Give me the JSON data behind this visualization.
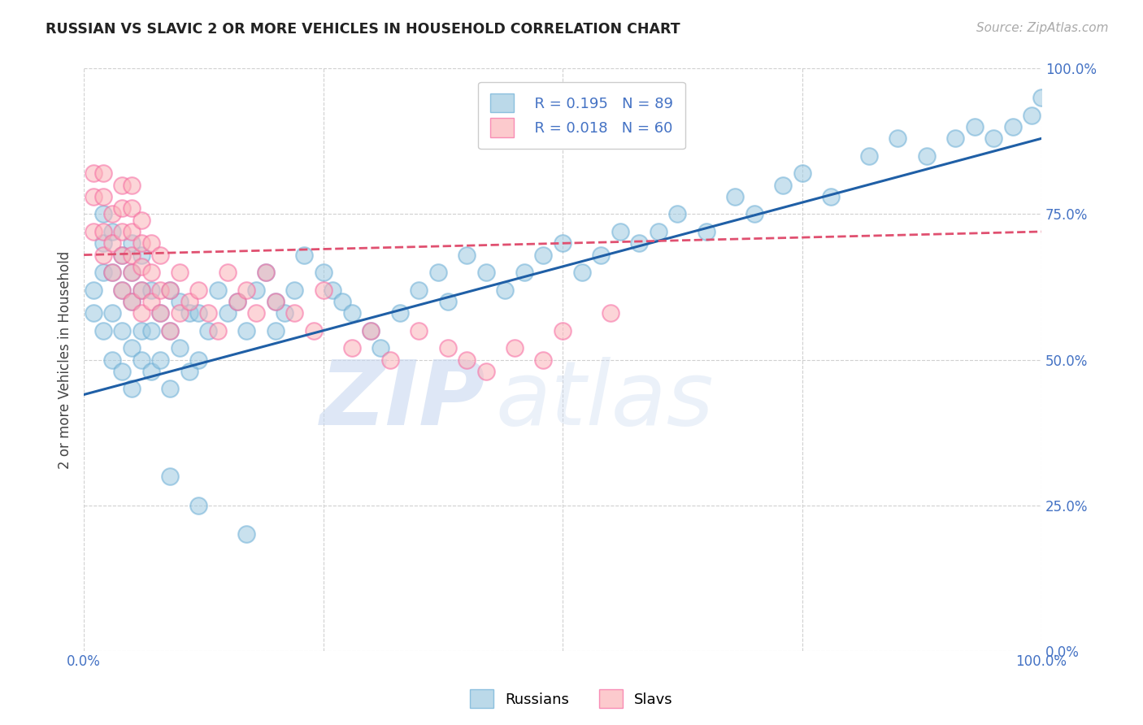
{
  "title": "RUSSIAN VS SLAVIC 2 OR MORE VEHICLES IN HOUSEHOLD CORRELATION CHART",
  "source": "Source: ZipAtlas.com",
  "ylabel": "2 or more Vehicles in Household",
  "xlim": [
    0.0,
    100.0
  ],
  "ylim": [
    0.0,
    100.0
  ],
  "xticks": [
    0.0,
    25.0,
    50.0,
    75.0,
    100.0
  ],
  "yticks": [
    0.0,
    25.0,
    50.0,
    75.0,
    100.0
  ],
  "xtick_labels": [
    "0.0%",
    "",
    "",
    "",
    "100.0%"
  ],
  "ytick_labels": [
    "0.0%",
    "25.0%",
    "50.0%",
    "75.0%",
    "100.0%"
  ],
  "russians_x": [
    1,
    1,
    2,
    2,
    2,
    2,
    3,
    3,
    3,
    3,
    4,
    4,
    4,
    4,
    5,
    5,
    5,
    5,
    5,
    6,
    6,
    6,
    6,
    7,
    7,
    7,
    8,
    8,
    9,
    9,
    9,
    10,
    10,
    11,
    11,
    12,
    12,
    13,
    14,
    15,
    16,
    17,
    18,
    19,
    20,
    20,
    21,
    22,
    23,
    25,
    26,
    27,
    28,
    30,
    31,
    33,
    35,
    37,
    38,
    40,
    42,
    44,
    46,
    48,
    50,
    52,
    54,
    56,
    58,
    60,
    62,
    65,
    68,
    70,
    73,
    75,
    78,
    82,
    85,
    88,
    91,
    93,
    95,
    97,
    99,
    100,
    9,
    12,
    17
  ],
  "russians_y": [
    58,
    62,
    55,
    65,
    70,
    75,
    50,
    58,
    65,
    72,
    48,
    55,
    62,
    68,
    45,
    52,
    60,
    65,
    70,
    50,
    55,
    62,
    68,
    48,
    55,
    62,
    50,
    58,
    45,
    55,
    62,
    52,
    60,
    48,
    58,
    50,
    58,
    55,
    62,
    58,
    60,
    55,
    62,
    65,
    55,
    60,
    58,
    62,
    68,
    65,
    62,
    60,
    58,
    55,
    52,
    58,
    62,
    65,
    60,
    68,
    65,
    62,
    65,
    68,
    70,
    65,
    68,
    72,
    70,
    72,
    75,
    72,
    78,
    75,
    80,
    82,
    78,
    85,
    88,
    85,
    88,
    90,
    88,
    90,
    92,
    95,
    30,
    25,
    20
  ],
  "russians_color": "#9ecae1",
  "russians_edge": "#6baed6",
  "slavs_x": [
    1,
    1,
    1,
    2,
    2,
    2,
    2,
    3,
    3,
    3,
    4,
    4,
    4,
    4,
    4,
    5,
    5,
    5,
    5,
    5,
    5,
    6,
    6,
    6,
    6,
    6,
    7,
    7,
    7,
    8,
    8,
    8,
    9,
    9,
    10,
    10,
    11,
    12,
    13,
    14,
    15,
    16,
    17,
    18,
    19,
    20,
    22,
    24,
    25,
    28,
    30,
    32,
    35,
    38,
    40,
    42,
    45,
    48,
    50,
    55
  ],
  "slavs_y": [
    72,
    78,
    82,
    68,
    72,
    78,
    82,
    65,
    70,
    75,
    62,
    68,
    72,
    76,
    80,
    60,
    65,
    68,
    72,
    76,
    80,
    58,
    62,
    66,
    70,
    74,
    60,
    65,
    70,
    58,
    62,
    68,
    55,
    62,
    58,
    65,
    60,
    62,
    58,
    55,
    65,
    60,
    62,
    58,
    65,
    60,
    58,
    55,
    62,
    52,
    55,
    50,
    55,
    52,
    50,
    48,
    52,
    50,
    55,
    58
  ],
  "slavs_color": "#fbb4b9",
  "slavs_edge": "#f768a1",
  "legend_r_russian": "R = 0.195",
  "legend_n_russian": "N = 89",
  "legend_r_slavic": "R = 0.018",
  "legend_n_slavic": "N = 60",
  "blue_line_x0": 0,
  "blue_line_x1": 100,
  "blue_line_y0": 44,
  "blue_line_y1": 88,
  "pink_line_x0": 0,
  "pink_line_x1": 100,
  "pink_line_y0": 68,
  "pink_line_y1": 72,
  "watermark_zip": "ZIP",
  "watermark_atlas": "atlas",
  "background_color": "#ffffff",
  "grid_color": "#d0d0d0",
  "title_color": "#222222",
  "axis_label_color": "#444444",
  "tick_color": "#4472c4",
  "source_color": "#aaaaaa",
  "blue_line_color": "#1f5fa6",
  "pink_line_color": "#e05070",
  "watermark_color": "#c8d8f0"
}
